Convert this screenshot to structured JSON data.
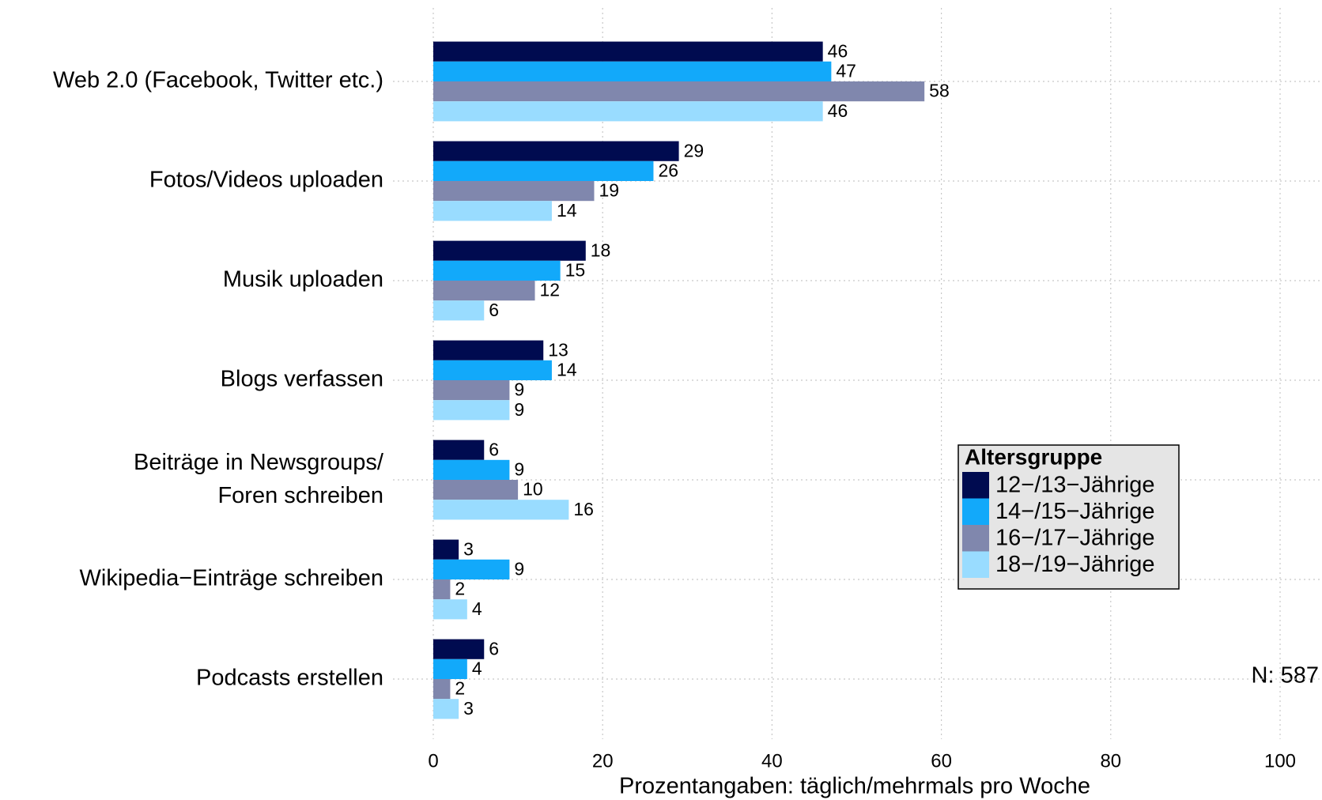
{
  "chart_data": {
    "type": "bar",
    "orientation": "horizontal",
    "categories": [
      "Web 2.0 (Facebook, Twitter etc.)",
      "Fotos/Videos uploaden",
      "Musik uploaden",
      "Blogs verfassen",
      "Beiträge in Newsgroups/\nForen schreiben",
      "Wikipedia−Einträge schreiben",
      "Podcasts erstellen"
    ],
    "series": [
      {
        "name": "12−/13−Jährige",
        "color": "#000b50",
        "values": [
          46,
          29,
          18,
          13,
          6,
          3,
          6
        ]
      },
      {
        "name": "14−/15−Jährige",
        "color": "#12a9fa",
        "values": [
          47,
          26,
          15,
          14,
          9,
          9,
          4
        ]
      },
      {
        "name": "16−/17−Jährige",
        "color": "#8087ad",
        "values": [
          58,
          19,
          12,
          9,
          10,
          2,
          2
        ]
      },
      {
        "name": "18−/19−Jährige",
        "color": "#99dcff",
        "values": [
          46,
          14,
          6,
          9,
          16,
          4,
          3
        ]
      }
    ],
    "xlabel": "Prozentangaben: täglich/mehrmals pro Woche",
    "xlim": [
      0,
      100
    ],
    "xticks": [
      0,
      20,
      40,
      60,
      80,
      100
    ],
    "grid": true,
    "legend": {
      "title": "Altersgruppe",
      "position": "right"
    },
    "annotation": "N: 587"
  }
}
